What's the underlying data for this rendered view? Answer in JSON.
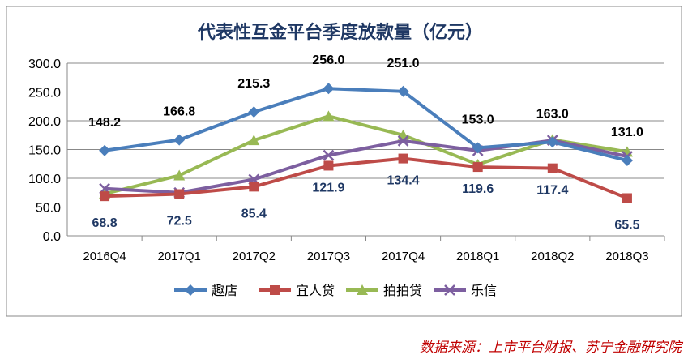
{
  "chart_data": {
    "type": "line",
    "title": "代表性互金平台季度放款量（亿元）",
    "categories": [
      "2016Q4",
      "2017Q1",
      "2017Q2",
      "2017Q3",
      "2017Q4",
      "2018Q1",
      "2018Q2",
      "2018Q3"
    ],
    "ylim": [
      0,
      300
    ],
    "yticks": [
      "0.0",
      "50.0",
      "100.0",
      "150.0",
      "200.0",
      "250.0",
      "300.0"
    ],
    "grid": true,
    "legend": "bottom",
    "series": [
      {
        "name": "趣店",
        "color": "#4a7ebb",
        "marker": "diamond",
        "values": [
          148.2,
          166.8,
          215.3,
          256.0,
          251.0,
          153.0,
          163.0,
          131.0
        ],
        "labels": [
          "148.2",
          "166.8",
          "215.3",
          "256.0",
          "251.0",
          "153.0",
          "163.0",
          "131.0"
        ]
      },
      {
        "name": "宜人贷",
        "color": "#be4b48",
        "marker": "square",
        "values": [
          68.8,
          72.5,
          85.4,
          121.9,
          134.4,
          119.6,
          117.4,
          65.5
        ],
        "labels": [
          "68.8",
          "72.5",
          "85.4",
          "121.9",
          "134.4",
          "119.6",
          "117.4",
          "65.5"
        ]
      },
      {
        "name": "拍拍贷",
        "color": "#98b954",
        "marker": "triangle",
        "values": [
          73,
          105,
          166,
          208,
          175,
          124,
          167,
          146
        ]
      },
      {
        "name": "乐信",
        "color": "#7d5fa0",
        "marker": "x",
        "values": [
          82,
          75,
          98,
          140,
          165,
          148,
          166,
          138
        ]
      }
    ]
  },
  "source": "数据来源：上市平台财报、苏宁金融研究院"
}
